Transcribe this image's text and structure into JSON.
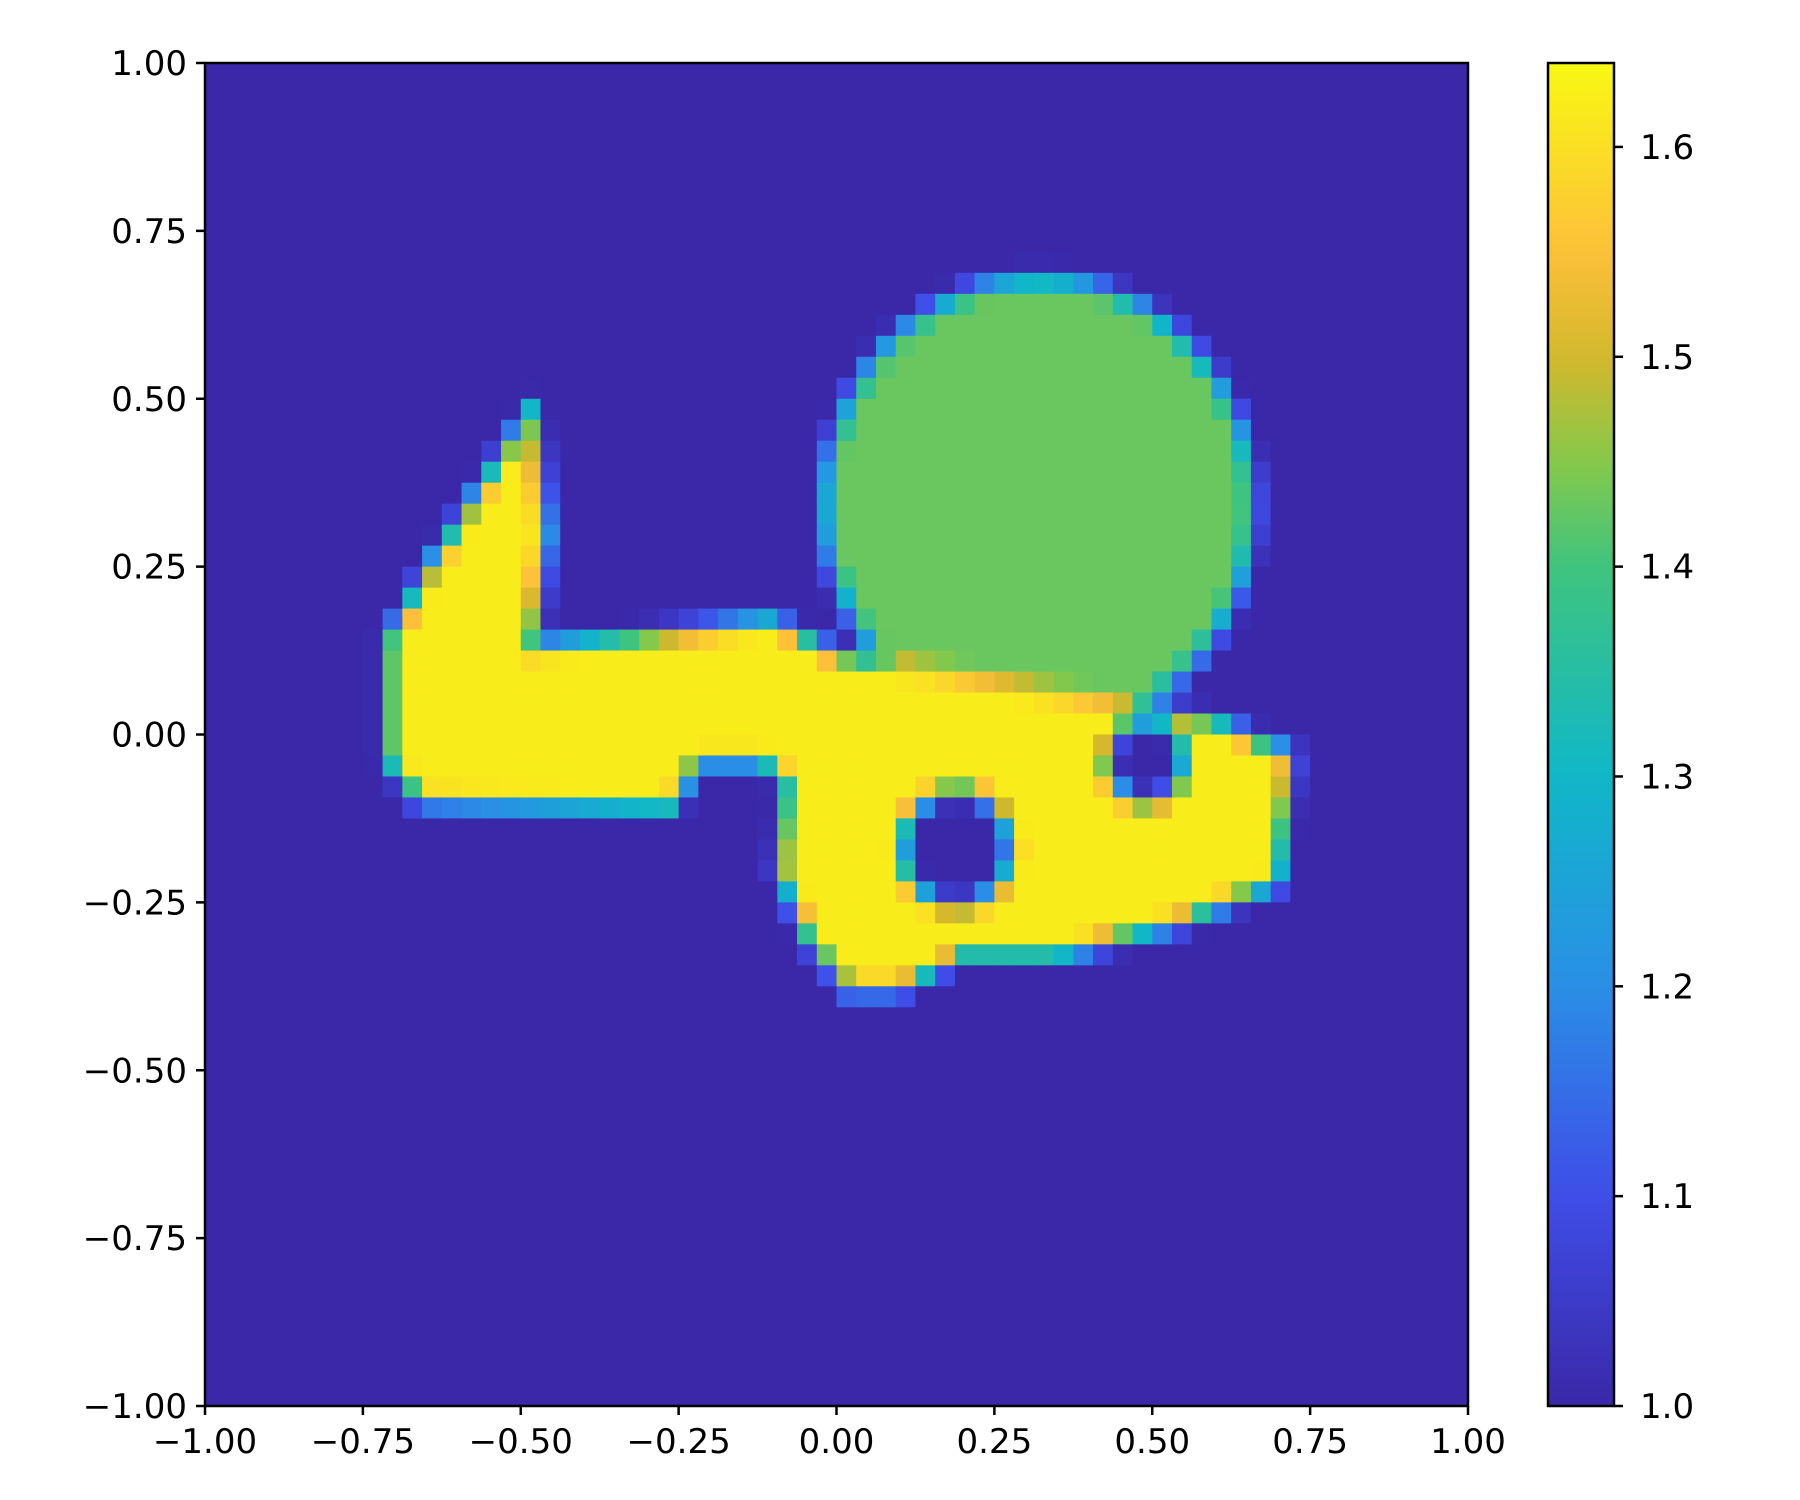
{
  "chart_data": {
    "type": "heatmap",
    "title": "",
    "xlabel": "",
    "ylabel": "",
    "xlim": [
      -1.0,
      1.0
    ],
    "ylim": [
      -1.0,
      1.0
    ],
    "grid_resolution": [
      64,
      64
    ],
    "background_value": 1.0,
    "colormap": "plasma-like (indigo -> blue -> teal -> green -> yellow)",
    "colormap_stops": [
      {
        "value": 1.0,
        "color": "#3a28a8"
      },
      {
        "value": 1.1,
        "color": "#3f4de8"
      },
      {
        "value": 1.2,
        "color": "#2a8fe6"
      },
      {
        "value": 1.3,
        "color": "#10b7c8"
      },
      {
        "value": 1.4,
        "color": "#3fc47e"
      },
      {
        "value": 1.45,
        "color": "#86c84a"
      },
      {
        "value": 1.5,
        "color": "#d4b82c"
      },
      {
        "value": 1.55,
        "color": "#fcc03a"
      },
      {
        "value": 1.64,
        "color": "#f8f812"
      }
    ],
    "x_ticks": [
      "−1.00",
      "−0.75",
      "−0.50",
      "−0.25",
      "0.00",
      "0.25",
      "0.50",
      "0.75",
      "1.00"
    ],
    "x_tick_values": [
      -1.0,
      -0.75,
      -0.5,
      -0.25,
      0.0,
      0.25,
      0.5,
      0.75,
      1.0
    ],
    "y_ticks": [
      "1.00",
      "0.75",
      "0.50",
      "0.25",
      "0.00",
      "−0.25",
      "−0.50",
      "−0.75",
      "−1.00"
    ],
    "y_tick_values": [
      1.0,
      0.75,
      0.5,
      0.25,
      0.0,
      -0.25,
      -0.5,
      -0.75,
      -1.0
    ],
    "colorbar": {
      "range": [
        1.0,
        1.64
      ],
      "ticks": [
        "1.6",
        "1.5",
        "1.4",
        "1.3",
        "1.2",
        "1.1",
        "1.0"
      ],
      "tick_values": [
        1.6,
        1.5,
        1.4,
        1.3,
        1.2,
        1.1,
        1.0
      ]
    },
    "regions": [
      {
        "shape": "circle",
        "value": 1.43,
        "center": [
          0.32,
          0.34
        ],
        "radius": 0.34
      },
      {
        "shape": "polygon",
        "value": 1.62,
        "points": [
          [
            -0.48,
            0.49
          ],
          [
            -0.65,
            0.24
          ],
          [
            -0.71,
            0.14
          ],
          [
            -0.71,
            -0.04
          ],
          [
            -0.66,
            -0.1
          ],
          [
            -0.26,
            -0.11
          ],
          [
            -0.22,
            -0.04
          ],
          [
            -0.12,
            -0.04
          ],
          [
            -0.08,
            -0.07
          ],
          [
            -0.09,
            -0.2
          ],
          [
            -0.05,
            -0.3
          ],
          [
            0.02,
            -0.38
          ],
          [
            0.1,
            -0.38
          ],
          [
            0.2,
            -0.33
          ],
          [
            0.35,
            -0.33
          ],
          [
            0.55,
            -0.28
          ],
          [
            0.7,
            -0.22
          ],
          [
            0.72,
            -0.03
          ],
          [
            0.6,
            0.02
          ],
          [
            0.0,
            0.12
          ],
          [
            -0.1,
            0.17
          ],
          [
            -0.48,
            0.13
          ],
          [
            -0.46,
            0.3
          ]
        ]
      },
      {
        "shape": "circle",
        "value": 1.0,
        "center": [
          0.19,
          -0.17
        ],
        "radius": 0.085
      },
      {
        "shape": "circle",
        "value": 1.0,
        "center": [
          0.49,
          -0.04
        ],
        "radius": 0.06
      }
    ]
  }
}
